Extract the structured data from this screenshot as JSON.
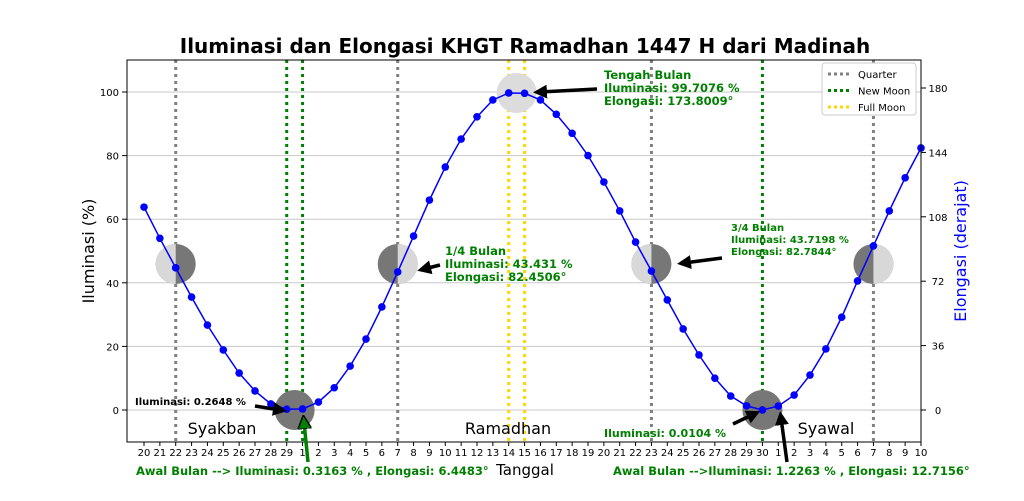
{
  "chart_data": {
    "type": "line",
    "title": "Iluminasi dan Elongasi KHGT Ramadhan 1447 H dari Madinah",
    "xlabel": "Tanggal",
    "ylabel": "Iluminasi (%)",
    "ylabel_right": "Elongasi (derajat)",
    "ylim": [
      -10,
      110
    ],
    "yticks": [
      0,
      20,
      40,
      60,
      80,
      100
    ],
    "yticks_right": [
      0,
      36,
      72,
      108,
      144,
      180
    ],
    "x_labels": [
      "20",
      "21",
      "22",
      "23",
      "24",
      "25",
      "26",
      "27",
      "28",
      "29",
      "1",
      "2",
      "3",
      "4",
      "5",
      "6",
      "7",
      "8",
      "9",
      "10",
      "11",
      "12",
      "13",
      "14",
      "15",
      "16",
      "17",
      "18",
      "19",
      "20",
      "21",
      "22",
      "23",
      "24",
      "25",
      "26",
      "27",
      "28",
      "29",
      "30",
      "1",
      "2",
      "3",
      "4",
      "5",
      "6",
      "7",
      "8",
      "9",
      "10"
    ],
    "series": [
      {
        "name": "Iluminasi",
        "color": "#0000ff",
        "values": [
          63.8,
          54.0,
          44.7,
          35.5,
          26.7,
          18.9,
          11.6,
          6.0,
          1.9,
          0.26,
          0.32,
          2.5,
          7.0,
          13.8,
          22.3,
          32.4,
          43.4,
          54.7,
          66.0,
          76.4,
          85.2,
          92.2,
          97.5,
          99.7,
          99.6,
          97.5,
          93.0,
          87.0,
          80.0,
          71.7,
          62.6,
          52.8,
          43.7,
          34.6,
          25.5,
          17.3,
          10.0,
          4.4,
          1.3,
          0.01,
          1.23,
          4.7,
          11.0,
          19.2,
          29.2,
          40.6,
          51.6,
          62.6,
          73.0,
          82.4
        ]
      }
    ],
    "vlines": [
      {
        "type": "Quarter",
        "index": 2
      },
      {
        "type": "Quarter",
        "index": 16
      },
      {
        "type": "Quarter",
        "index": 32
      },
      {
        "type": "Quarter",
        "index": 46
      },
      {
        "type": "New Moon",
        "index": 9
      },
      {
        "type": "New Moon",
        "index": 10
      },
      {
        "type": "New Moon",
        "index": 39
      },
      {
        "type": "Full Moon",
        "index": 23
      },
      {
        "type": "Full Moon",
        "index": 24
      }
    ],
    "legend": {
      "position": "top-right",
      "entries": [
        {
          "label": "Quarter",
          "color": "#808080"
        },
        {
          "label": "New Moon",
          "color": "#008000"
        },
        {
          "label": "Full Moon",
          "color": "#ffd700"
        }
      ]
    },
    "months": [
      "Syakban",
      "Ramadhan",
      "Syawal"
    ],
    "annotations": {
      "full": [
        "Tengah Bulan",
        "Iluminasi: 99.7076 %",
        "Elongasi: 173.8009°"
      ],
      "first_q": [
        "1/4 Bulan",
        "Iluminasi: 43.431 %",
        "Elongasi: 82.4506°"
      ],
      "last_q": [
        "3/4 Bulan",
        "Iluminasi: 43.7198 %",
        "Elongasi: 82.7844°"
      ],
      "new1": "Iluminasi: 0.2648 %",
      "new2": "Iluminasi: 0.0104 %",
      "start1": "Awal Bulan --> Iluminasi: 0.3163 % , Elongasi: 6.4483°",
      "start2": "Awal Bulan -->Iluminasi: 1.2263 % , Elongasi: 12.7156°"
    }
  }
}
